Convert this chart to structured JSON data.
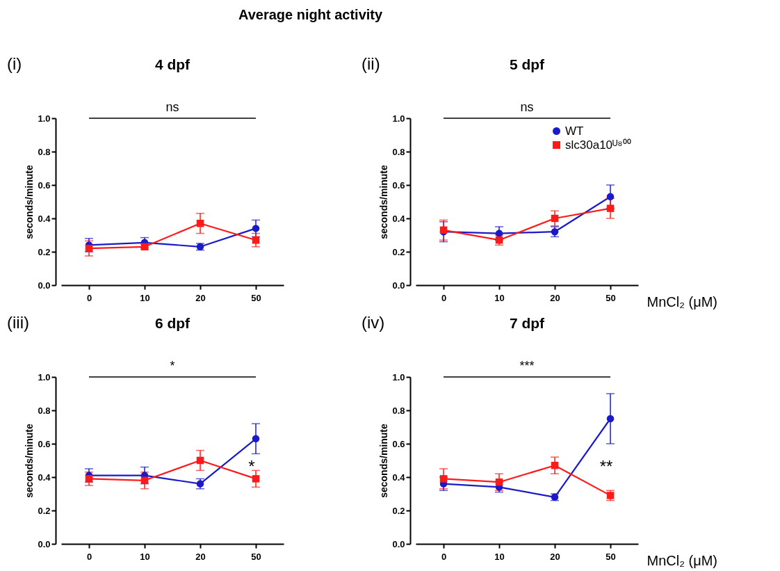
{
  "chart_data": [
    {
      "type": "line",
      "title": "4 dpf",
      "ylabel": "seconds/minute",
      "categories": [
        "0",
        "10",
        "20",
        "50"
      ],
      "ylim": [
        0,
        1
      ],
      "yticks": [
        {
          "value": 0,
          "label": "0.0"
        },
        {
          "value": 0.2,
          "label": "0.2"
        },
        {
          "value": 0.4,
          "label": "0.4"
        },
        {
          "value": 0.6,
          "label": "0.6"
        },
        {
          "value": 0.8,
          "label": "0.8"
        },
        {
          "value": 1,
          "label": "1.0"
        }
      ],
      "series": [
        {
          "color": "#1a1ac8",
          "marker": "circle",
          "values": [
            0.24,
            0.255,
            0.23,
            0.34
          ],
          "errors": [
            0.04,
            0.03,
            0.02,
            0.05
          ]
        },
        {
          "color": "#ff1a1a",
          "marker": "square",
          "values": [
            0.22,
            0.23,
            0.37,
            0.27
          ],
          "errors": [
            0.045,
            0.015,
            0.06,
            0.04
          ]
        }
      ],
      "annotations": [
        "(i)",
        "ns",
        "Average night activity"
      ]
    },
    {
      "type": "line",
      "title": "5 dpf",
      "ylabel": "seconds/minute",
      "xlabel": "MnCl₂ (μM)",
      "categories": [
        "0",
        "10",
        "20",
        "50"
      ],
      "ylim": [
        0,
        1
      ],
      "yticks": [
        {
          "value": 0,
          "label": "0.0"
        },
        {
          "value": 0.2,
          "label": "0.2"
        },
        {
          "value": 0.4,
          "label": "0.4"
        },
        {
          "value": 0.6,
          "label": "0.6"
        },
        {
          "value": 0.8,
          "label": "0.8"
        },
        {
          "value": 1,
          "label": "1.0"
        }
      ],
      "legend": "top right",
      "series": [
        {
          "name": "WT",
          "color": "#1a1ac8",
          "marker": "circle",
          "values": [
            0.32,
            0.31,
            0.32,
            0.53
          ],
          "errors": [
            0.06,
            0.04,
            0.03,
            0.07
          ]
        },
        {
          "name": "slc30a10ᵁ⁸⁰⁰",
          "color": "#ff1a1a",
          "marker": "square",
          "values": [
            0.33,
            0.27,
            0.4,
            0.46
          ],
          "errors": [
            0.06,
            0.03,
            0.045,
            0.06
          ]
        }
      ],
      "annotations": [
        "(ii)",
        "ns"
      ]
    },
    {
      "type": "line",
      "title": "6 dpf",
      "ylabel": "seconds/minute",
      "categories": [
        "0",
        "10",
        "20",
        "50"
      ],
      "ylim": [
        0,
        1
      ],
      "yticks": [
        {
          "value": 0,
          "label": "0.0"
        },
        {
          "value": 0.2,
          "label": "0.2"
        },
        {
          "value": 0.4,
          "label": "0.4"
        },
        {
          "value": 0.6,
          "label": "0.6"
        },
        {
          "value": 0.8,
          "label": "0.8"
        },
        {
          "value": 1,
          "label": "1.0"
        }
      ],
      "series": [
        {
          "color": "#1a1ac8",
          "marker": "circle",
          "values": [
            0.41,
            0.41,
            0.36,
            0.63
          ],
          "errors": [
            0.04,
            0.05,
            0.03,
            0.09
          ]
        },
        {
          "color": "#ff1a1a",
          "marker": "square",
          "values": [
            0.39,
            0.38,
            0.5,
            0.39
          ],
          "errors": [
            0.04,
            0.05,
            0.06,
            0.05
          ]
        }
      ],
      "annotations": [
        "(iii)",
        "*",
        "*"
      ]
    },
    {
      "type": "line",
      "title": "7 dpf",
      "ylabel": "seconds/minute",
      "xlabel": "MnCl₂ (μM)",
      "categories": [
        "0",
        "10",
        "20",
        "50"
      ],
      "ylim": [
        0,
        1
      ],
      "yticks": [
        {
          "value": 0,
          "label": "0.0"
        },
        {
          "value": 0.2,
          "label": "0.2"
        },
        {
          "value": 0.4,
          "label": "0.4"
        },
        {
          "value": 0.6,
          "label": "0.6"
        },
        {
          "value": 0.8,
          "label": "0.8"
        },
        {
          "value": 1,
          "label": "1.0"
        }
      ],
      "series": [
        {
          "color": "#1a1ac8",
          "marker": "circle",
          "values": [
            0.36,
            0.34,
            0.28,
            0.75
          ],
          "errors": [
            0.04,
            0.03,
            0.02,
            0.15
          ]
        },
        {
          "color": "#ff1a1a",
          "marker": "square",
          "values": [
            0.39,
            0.37,
            0.47,
            0.29
          ],
          "errors": [
            0.06,
            0.05,
            0.05,
            0.03
          ]
        }
      ],
      "annotations": [
        "(iv)",
        "***",
        "**"
      ]
    }
  ]
}
